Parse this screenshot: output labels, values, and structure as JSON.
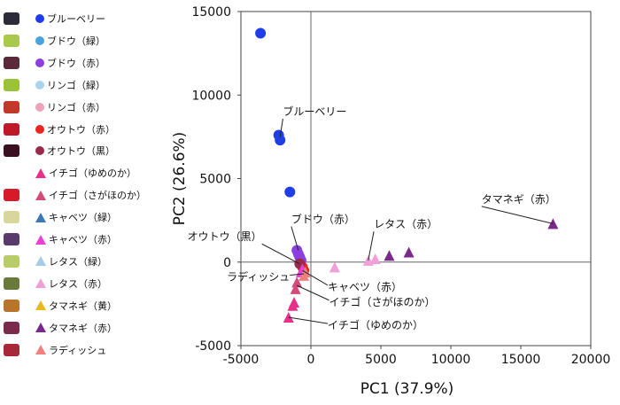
{
  "chart_data": {
    "type": "scatter",
    "title": "",
    "xlabel": "PC1 (37.9%)",
    "ylabel": "PC2 (26.6%)",
    "xlim": [
      -5000,
      20000
    ],
    "ylim": [
      -5000,
      15000
    ],
    "xticks": [
      -5000,
      0,
      5000,
      10000,
      15000,
      20000
    ],
    "yticks": [
      -5000,
      0,
      5000,
      10000,
      15000
    ],
    "xtick_labels": [
      "-5000",
      "0",
      "5000",
      "10000",
      "15000",
      "20000"
    ],
    "ytick_labels": [
      "-5000",
      "0",
      "5000",
      "10000",
      "15000"
    ],
    "grid": false,
    "zero_lines": true,
    "legend_position": "left",
    "series": [
      {
        "name": "ブルーベリー",
        "marker": "circle",
        "color": "#1f3ee8",
        "thumb": "#2b2b3a",
        "points": [
          [
            -3600,
            13700
          ],
          [
            -2300,
            7600
          ],
          [
            -2200,
            7300
          ],
          [
            -1500,
            4200
          ]
        ]
      },
      {
        "name": "ブドウ（緑）",
        "marker": "circle",
        "color": "#4aa3df",
        "thumb": "#a8c94a",
        "points": []
      },
      {
        "name": "ブドウ（赤）",
        "marker": "circle",
        "color": "#8b3fe0",
        "thumb": "#5a2a3a",
        "points": [
          [
            -1000,
            700
          ],
          [
            -900,
            500
          ],
          [
            -800,
            300
          ],
          [
            -700,
            100
          ]
        ]
      },
      {
        "name": "リンゴ（緑）",
        "marker": "circle",
        "color": "#a9d4f0",
        "thumb": "#9cc23a",
        "points": []
      },
      {
        "name": "リンゴ（赤）",
        "marker": "circle",
        "color": "#f0a3b8",
        "thumb": "#c0392b",
        "points": []
      },
      {
        "name": "オウトウ（赤）",
        "marker": "circle",
        "color": "#e8261e",
        "thumb": "#c0182a",
        "points": [
          [
            -600,
            -300
          ],
          [
            -500,
            -500
          ]
        ]
      },
      {
        "name": "オウトウ（黒）",
        "marker": "circle",
        "color": "#9a2a4a",
        "thumb": "#3a1020",
        "points": [
          [
            -800,
            -100
          ]
        ]
      },
      {
        "name": "イチゴ（ゆめのか）",
        "marker": "triangle",
        "color": "#e8308a",
        "thumb": "#ffffff",
        "points": [
          [
            -1600,
            -3300
          ],
          [
            -1300,
            -2600
          ],
          [
            -1200,
            -2400
          ]
        ]
      },
      {
        "name": "イチゴ（さがほのか）",
        "marker": "triangle",
        "color": "#d44a7a",
        "thumb": "#d61a2a",
        "points": [
          [
            -1100,
            -1600
          ],
          [
            -1000,
            -1200
          ]
        ]
      },
      {
        "name": "キャベツ（緑）",
        "marker": "triangle",
        "color": "#3a7ab8",
        "thumb": "#d8d69a",
        "points": []
      },
      {
        "name": "キャベツ（赤）",
        "marker": "triangle",
        "color": "#ec3fd8",
        "thumb": "#5a3a6a",
        "points": [
          [
            -700,
            -600
          ],
          [
            -600,
            -400
          ]
        ]
      },
      {
        "name": "レタス（緑）",
        "marker": "triangle",
        "color": "#a6cbe6",
        "thumb": "#b8cc6a",
        "points": []
      },
      {
        "name": "レタス（赤）",
        "marker": "triangle",
        "color": "#f0a0d8",
        "thumb": "#6a7a3a",
        "points": [
          [
            1700,
            -300
          ],
          [
            4100,
            100
          ],
          [
            4600,
            200
          ]
        ]
      },
      {
        "name": "タマネギ（黄）",
        "marker": "triangle",
        "color": "#e8b820",
        "thumb": "#b8742a",
        "points": []
      },
      {
        "name": "タマネギ（赤）",
        "marker": "triangle",
        "color": "#7a2a8a",
        "thumb": "#7a2a4a",
        "points": [
          [
            5600,
            400
          ],
          [
            7000,
            600
          ],
          [
            17300,
            2300
          ]
        ]
      },
      {
        "name": "ラディッシュ",
        "marker": "triangle",
        "color": "#f08080",
        "thumb": "#a8283a",
        "points": [
          [
            -500,
            -800
          ],
          [
            -400,
            -600
          ]
        ]
      }
    ],
    "annotations": [
      {
        "text": "ブルーベリー",
        "point": [
          -2200,
          7500
        ],
        "label_at": [
          -2000,
          8800
        ],
        "anchor": "start"
      },
      {
        "text": "ブドウ（赤）",
        "point": [
          -900,
          700
        ],
        "label_at": [
          -1400,
          2350
        ],
        "anchor": "start"
      },
      {
        "text": "オウトウ（黒）",
        "point": [
          -800,
          -100
        ],
        "label_at": [
          -3500,
          1300
        ],
        "anchor": "end"
      },
      {
        "text": "ラディッシュ",
        "point": [
          -500,
          -700
        ],
        "label_at": [
          -1500,
          -1100
        ],
        "anchor": "end"
      },
      {
        "text": "キャベツ（赤）",
        "point": [
          -600,
          -500
        ],
        "label_at": [
          1200,
          -1700
        ],
        "anchor": "start"
      },
      {
        "text": "イチゴ（さがほのか）",
        "point": [
          -1000,
          -1400
        ],
        "label_at": [
          1300,
          -2600
        ],
        "anchor": "start"
      },
      {
        "text": "イチゴ（ゆめのか）",
        "point": [
          -1600,
          -3300
        ],
        "label_at": [
          1200,
          -4000
        ],
        "anchor": "start"
      },
      {
        "text": "レタス（赤）",
        "point": [
          4100,
          100
        ],
        "label_at": [
          4500,
          2050
        ],
        "anchor": "start"
      },
      {
        "text": "タマネギ（赤）",
        "point": [
          17300,
          2300
        ],
        "label_at": [
          12200,
          3550
        ],
        "anchor": "start"
      }
    ]
  }
}
